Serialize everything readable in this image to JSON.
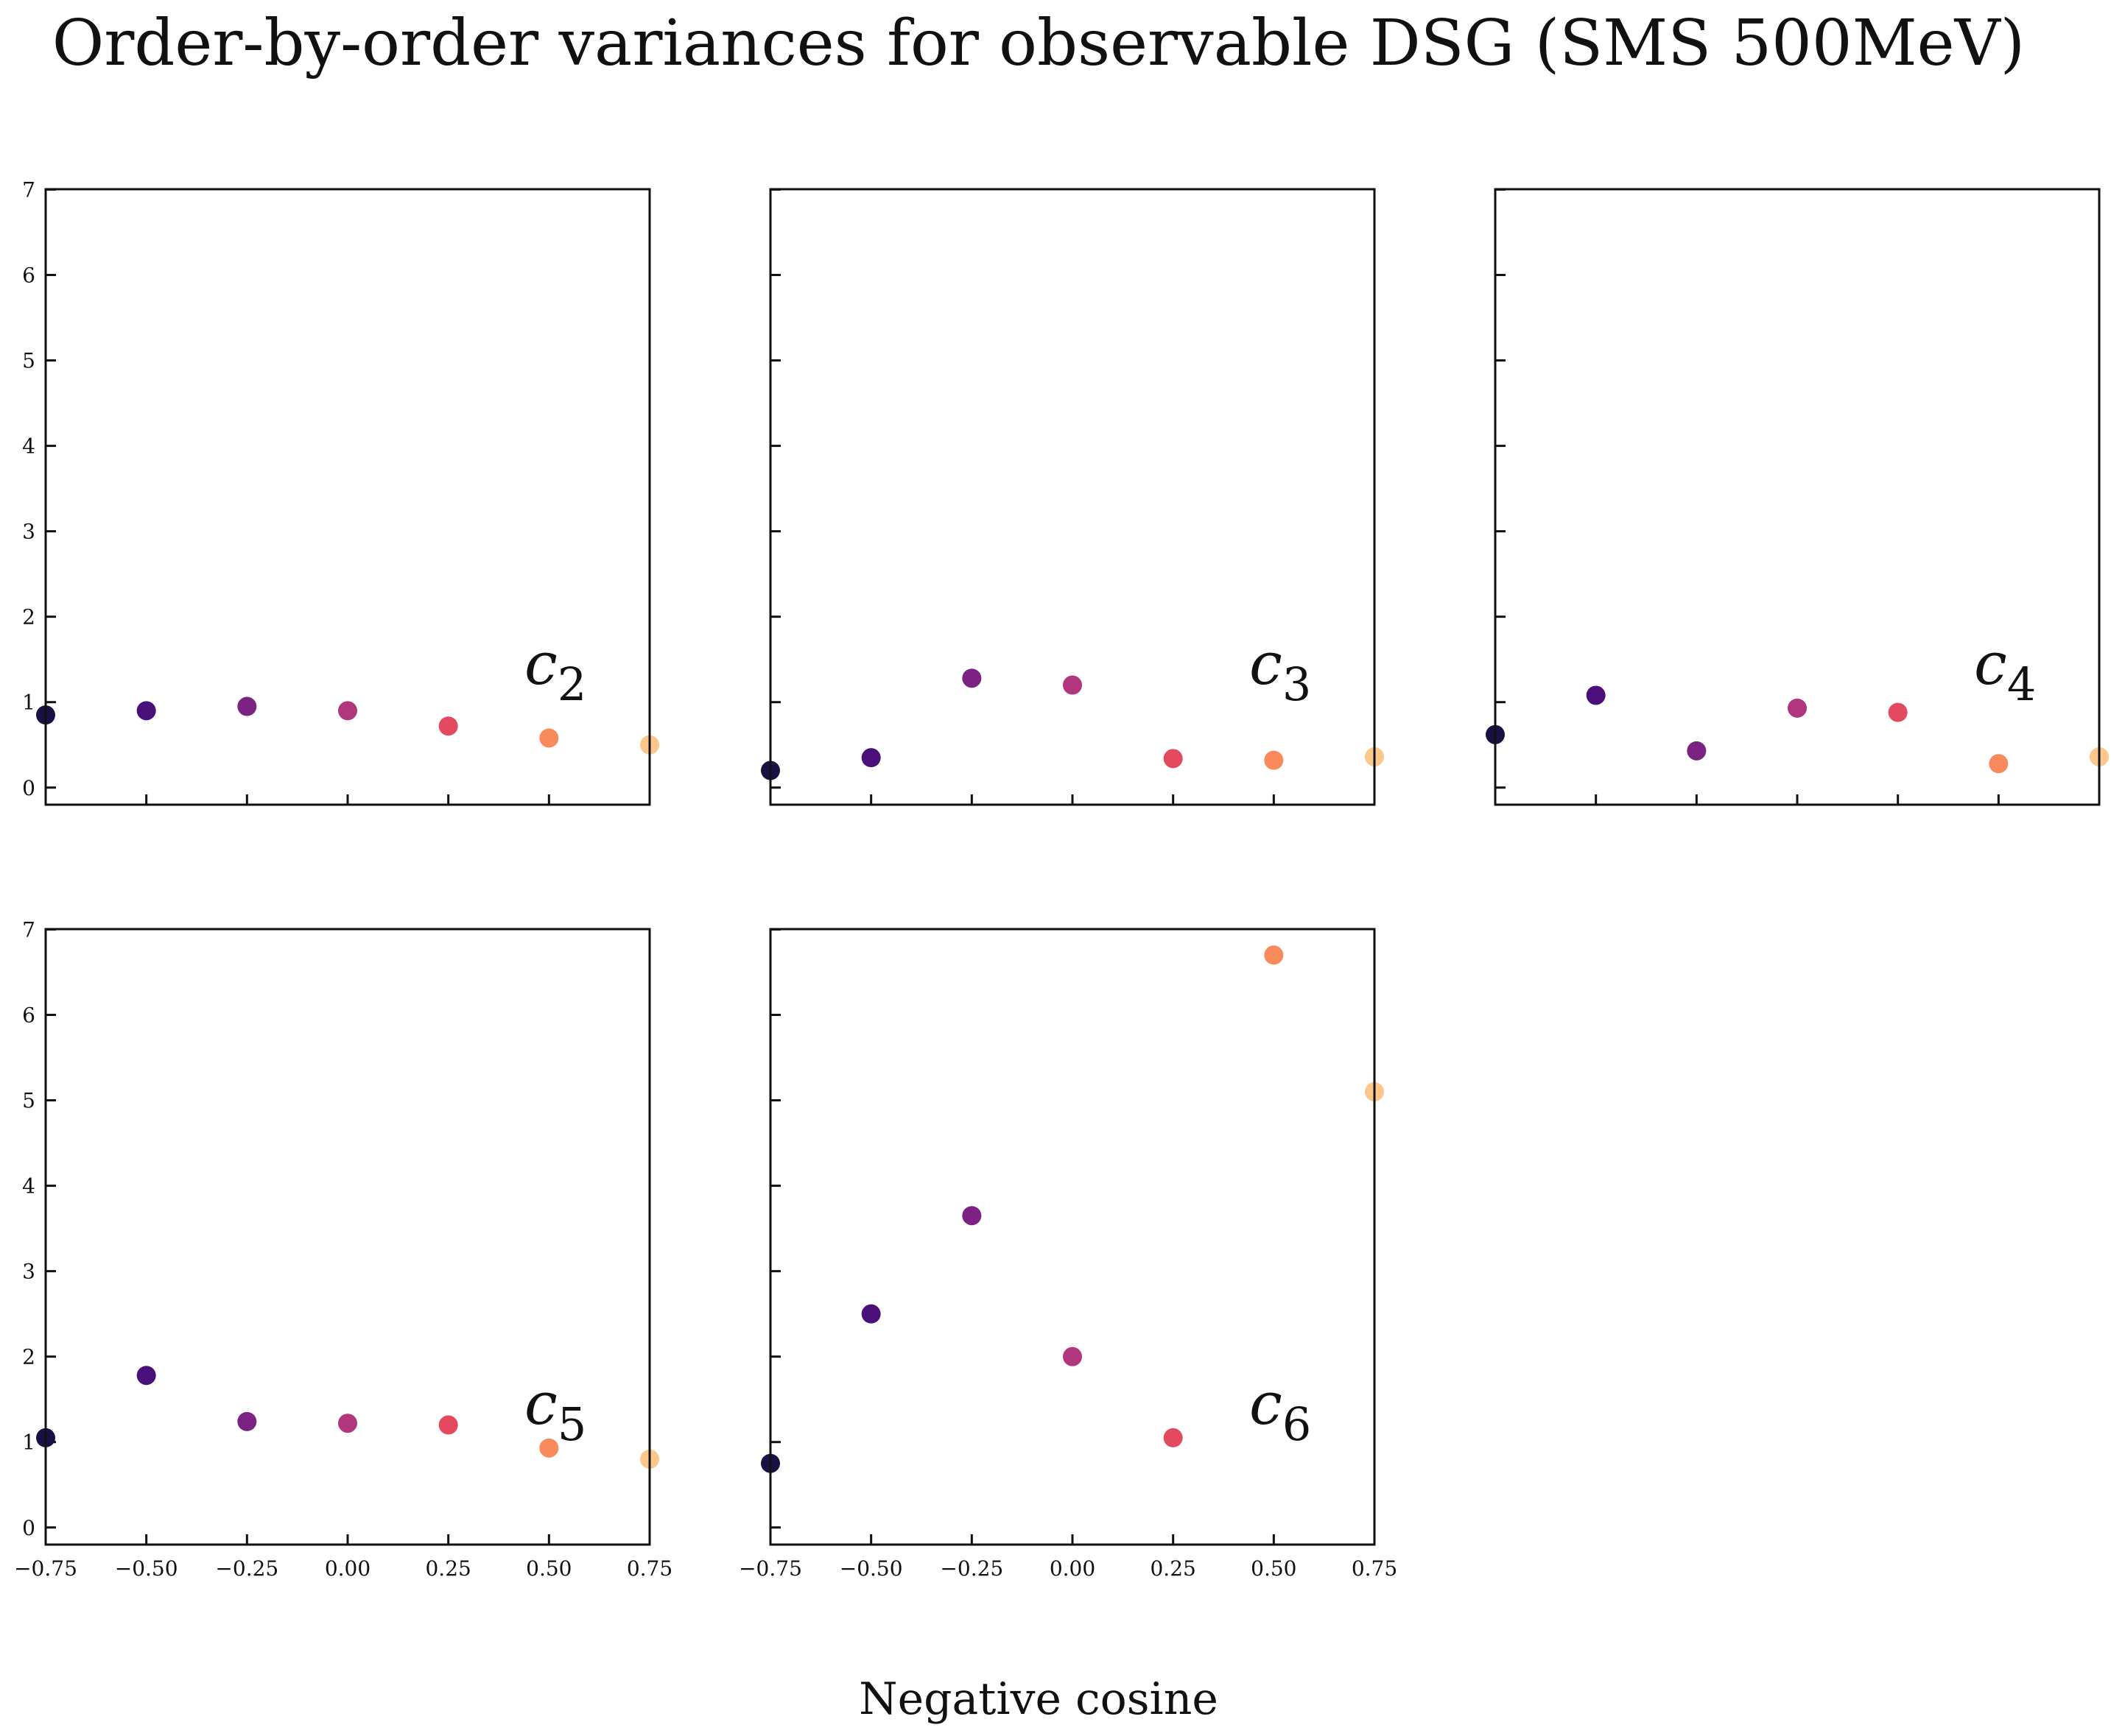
{
  "figure": {
    "title": "Order-by-order variances for observable DSG (SMS 500MeV)",
    "xlabel": "Negative cosine"
  },
  "chart_data": [
    {
      "type": "scatter",
      "label": "c",
      "label_sub": "2",
      "x": [
        -0.75,
        -0.5,
        -0.25,
        0.0,
        0.25,
        0.5,
        0.75
      ],
      "y": [
        0.85,
        0.9,
        0.95,
        0.9,
        0.72,
        0.58,
        0.5
      ],
      "xlim": [
        -0.75,
        0.75
      ],
      "ylim": [
        0,
        7
      ],
      "colors": [
        "#1b1044",
        "#4b0f7a",
        "#7c2282",
        "#b0377d",
        "#e34a5f",
        "#f98a5c",
        "#fdc68a"
      ],
      "xticks": [
        "−0.75",
        "−0.50",
        "−0.25",
        "0.00",
        "0.25",
        "0.50",
        "0.75"
      ],
      "yticks": [
        "0",
        "1",
        "2",
        "3",
        "4",
        "5",
        "6",
        "7"
      ]
    },
    {
      "type": "scatter",
      "label": "c",
      "label_sub": "3",
      "x": [
        -0.75,
        -0.5,
        -0.25,
        0.0,
        0.25,
        0.5,
        0.75
      ],
      "y": [
        0.2,
        0.35,
        1.28,
        1.2,
        0.34,
        0.32,
        0.36
      ],
      "xlim": [
        -0.75,
        0.75
      ],
      "ylim": [
        0,
        7
      ],
      "colors": [
        "#1b1044",
        "#4b0f7a",
        "#7c2282",
        "#b0377d",
        "#e34a5f",
        "#f98a5c",
        "#fdc68a"
      ],
      "xticks": [
        "−0.75",
        "−0.50",
        "−0.25",
        "0.00",
        "0.25",
        "0.50",
        "0.75"
      ],
      "yticks": [
        "0",
        "1",
        "2",
        "3",
        "4",
        "5",
        "6",
        "7"
      ]
    },
    {
      "type": "scatter",
      "label": "c",
      "label_sub": "4",
      "x": [
        -0.75,
        -0.5,
        -0.25,
        0.0,
        0.25,
        0.5,
        0.75
      ],
      "y": [
        0.62,
        1.08,
        0.43,
        0.93,
        0.88,
        0.28,
        0.36
      ],
      "xlim": [
        -0.75,
        0.75
      ],
      "ylim": [
        0,
        7
      ],
      "colors": [
        "#1b1044",
        "#4b0f7a",
        "#7c2282",
        "#b0377d",
        "#e34a5f",
        "#f98a5c",
        "#fdc68a"
      ],
      "xticks": [
        "−0.75",
        "−0.50",
        "−0.25",
        "0.00",
        "0.25",
        "0.50",
        "0.75"
      ],
      "yticks": [
        "0",
        "1",
        "2",
        "3",
        "4",
        "5",
        "6",
        "7"
      ]
    },
    {
      "type": "scatter",
      "label": "c",
      "label_sub": "5",
      "x": [
        -0.75,
        -0.5,
        -0.25,
        0.0,
        0.25,
        0.5,
        0.75
      ],
      "y": [
        1.05,
        1.78,
        1.24,
        1.22,
        1.2,
        0.93,
        0.8
      ],
      "xlim": [
        -0.75,
        0.75
      ],
      "ylim": [
        0,
        7
      ],
      "colors": [
        "#1b1044",
        "#4b0f7a",
        "#7c2282",
        "#b0377d",
        "#e34a5f",
        "#f98a5c",
        "#fdc68a"
      ],
      "xticks": [
        "−0.75",
        "−0.50",
        "−0.25",
        "0.00",
        "0.25",
        "0.50",
        "0.75"
      ],
      "yticks": [
        "0",
        "1",
        "2",
        "3",
        "4",
        "5",
        "6",
        "7"
      ]
    },
    {
      "type": "scatter",
      "label": "c",
      "label_sub": "6",
      "x": [
        -0.75,
        -0.5,
        -0.25,
        0.0,
        0.25,
        0.5,
        0.75
      ],
      "y": [
        0.75,
        2.5,
        3.65,
        2.0,
        1.05,
        6.7,
        5.1
      ],
      "xlim": [
        -0.75,
        0.75
      ],
      "ylim": [
        0,
        7
      ],
      "colors": [
        "#1b1044",
        "#4b0f7a",
        "#7c2282",
        "#b0377d",
        "#e34a5f",
        "#f98a5c",
        "#fdc68a"
      ],
      "xticks": [
        "−0.75",
        "−0.50",
        "−0.25",
        "0.00",
        "0.25",
        "0.50",
        "0.75"
      ],
      "yticks": [
        "0",
        "1",
        "2",
        "3",
        "4",
        "5",
        "6",
        "7"
      ]
    }
  ]
}
